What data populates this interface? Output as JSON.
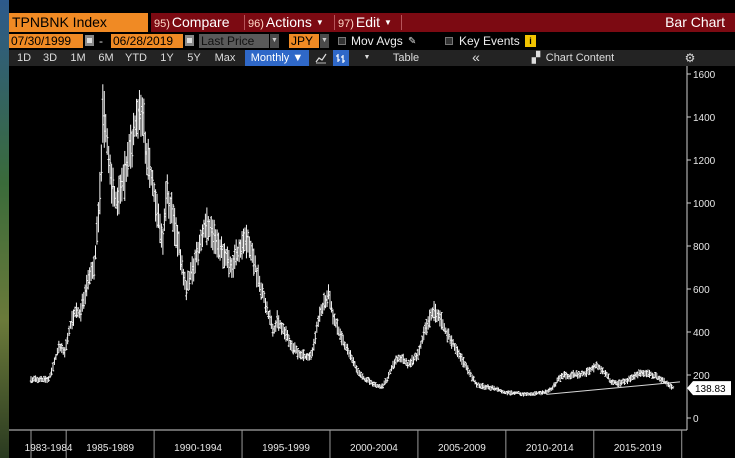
{
  "header": {
    "ticker": "TPNBNK Index",
    "compare": {
      "num": "95)",
      "label": "Compare"
    },
    "actions": {
      "num": "96)",
      "label": "Actions"
    },
    "edit": {
      "num": "97)",
      "label": "Edit"
    },
    "chart_type": "Bar Chart"
  },
  "daterow": {
    "start_date": "07/30/1999",
    "dash": "-",
    "end_date": "06/28/2019",
    "field": "Last Price",
    "currency": "JPY",
    "mov_avgs": "Mov Avgs",
    "key_events": "Key Events",
    "info_icon_text": "i"
  },
  "toolbar": {
    "periods": [
      "1D",
      "3D",
      "1M",
      "6M",
      "YTD",
      "1Y",
      "5Y",
      "Max"
    ],
    "frequency": "Monthly",
    "frequency_caret": "▼",
    "table": "Table",
    "collapse": "«",
    "chart_content": "Chart Content"
  },
  "chart_data": {
    "type": "bar",
    "frequency": "monthly",
    "y_ticks": [
      "1600",
      "1400",
      "1200",
      "1000",
      "800",
      "600",
      "400",
      "200",
      "0"
    ],
    "ylim": [
      0,
      1600
    ],
    "x_labels": [
      "1983-1984",
      "1985-1989",
      "1990-1994",
      "1995-1999",
      "2000-2004",
      "2005-2009",
      "2010-2014",
      "2015-2019"
    ],
    "last_value": "138.83",
    "series": [
      {
        "x": [
          1983.0,
          1983.5,
          1984.0,
          1984.3,
          1984.6,
          1984.9,
          1985.2,
          1985.5,
          1985.8,
          1986.0,
          1986.3,
          1986.6,
          1986.9,
          1987.1,
          1987.3,
          1987.5,
          1987.7,
          1987.9,
          1988.2,
          1988.5,
          1988.8,
          1989.0,
          1989.3,
          1989.6,
          1989.9,
          1990.1,
          1990.3,
          1990.5,
          1990.7,
          1990.9,
          1991.2,
          1991.5,
          1991.8,
          1992.0,
          1992.3,
          1992.6,
          1992.9,
          1993.2,
          1993.5,
          1993.8,
          1994.1,
          1994.4,
          1994.7,
          1995.0,
          1995.3,
          1995.6,
          1995.9,
          1996.2,
          1996.5,
          1996.8,
          1997.0,
          1997.3,
          1997.6,
          1997.9,
          1998.2,
          1998.5,
          1998.8,
          1999.0,
          1999.3,
          1999.6,
          1999.9,
          2000.2,
          2000.5,
          2000.8,
          2001.1,
          2001.4,
          2001.7,
          2002.0,
          2002.3,
          2002.6,
          2002.9,
          2003.2,
          2003.5,
          2003.8,
          2004.1,
          2004.4,
          2004.7,
          2005.0,
          2005.3,
          2005.6,
          2005.9,
          2006.2,
          2006.5,
          2006.8,
          2007.1,
          2007.4,
          2007.7,
          2008.0,
          2008.3,
          2008.6,
          2008.9,
          2009.2,
          2009.5,
          2009.8,
          2010.2,
          2010.6,
          2011.0,
          2011.4,
          2011.8,
          2012.2,
          2012.6,
          2013.0,
          2013.3,
          2013.6,
          2013.9,
          2014.2,
          2014.5,
          2014.8,
          2015.1,
          2015.4,
          2015.7,
          2016.0,
          2016.3,
          2016.6,
          2016.9,
          2017.2,
          2017.5,
          2017.8,
          2018.1,
          2018.4,
          2018.7,
          2019.0,
          2019.3,
          2019.5
        ],
        "values": [
          180,
          180,
          180,
          250,
          330,
          300,
          420,
          500,
          480,
          560,
          650,
          700,
          1000,
          1450,
          1300,
          1150,
          1050,
          1000,
          1080,
          1180,
          1300,
          1400,
          1450,
          1200,
          1100,
          1000,
          900,
          800,
          1050,
          1000,
          880,
          750,
          600,
          650,
          720,
          800,
          900,
          880,
          840,
          780,
          750,
          700,
          760,
          800,
          820,
          760,
          650,
          580,
          480,
          400,
          460,
          420,
          370,
          330,
          300,
          290,
          280,
          310,
          440,
          520,
          580,
          470,
          400,
          350,
          300,
          250,
          200,
          180,
          170,
          150,
          140,
          170,
          230,
          270,
          280,
          250,
          270,
          300,
          380,
          450,
          500,
          470,
          420,
          370,
          330,
          290,
          240,
          200,
          160,
          150,
          145,
          140,
          135,
          120,
          115,
          120,
          110,
          112,
          115,
          120,
          135,
          180,
          200,
          195,
          205,
          200,
          210,
          220,
          245,
          230,
          200,
          170,
          160,
          165,
          175,
          190,
          200,
          210,
          205,
          200,
          185,
          170,
          150,
          140
        ]
      }
    ],
    "trendline": {
      "x": [
        2012.3,
        2019.9
      ],
      "y": [
        110,
        168
      ]
    }
  }
}
